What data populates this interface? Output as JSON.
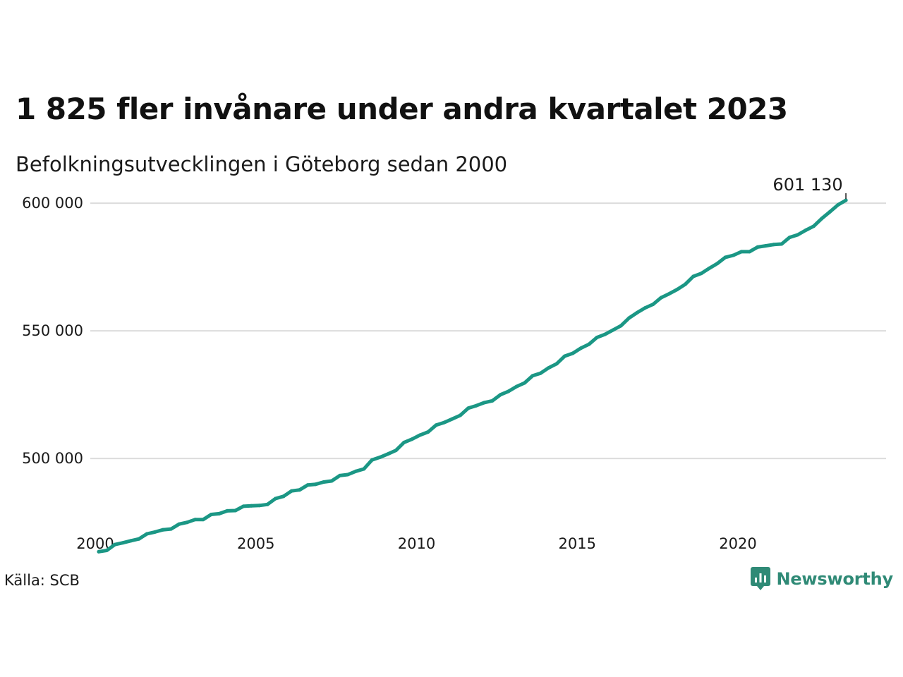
{
  "title": "1 825 fler invånare under andra kvartalet 2023",
  "subtitle": "Befolkningsutvecklingen i Göteborg sedan 2000",
  "source": "Källa: SCB",
  "brand": {
    "name": "Newsworthy",
    "icon": "newsworthy-logo-icon",
    "color": "#2f8a76"
  },
  "colors": {
    "line": "#1b9785",
    "grid": "#dcdcdc",
    "text": "#1a1a1a"
  },
  "chart_data": {
    "type": "line",
    "title": "1 825 fler invånare under andra kvartalet 2023",
    "subtitle": "Befolkningsutvecklingen i Göteborg sedan 2000",
    "xlabel": "",
    "ylabel": "",
    "xlim": [
      2000,
      2024.5
    ],
    "ylim": [
      460000,
      605000
    ],
    "x_ticks": [
      2000,
      2005,
      2010,
      2015,
      2020
    ],
    "x_tick_labels": [
      "2000",
      "2005",
      "2010",
      "2015",
      "2020"
    ],
    "y_ticks": [
      500000,
      550000,
      600000
    ],
    "y_tick_labels": [
      "500 000",
      "550 000",
      "600 000"
    ],
    "grid": "horizontal",
    "legend": "none",
    "end_label": "601 130",
    "series": [
      {
        "x": [
          2000.0,
          2000.25,
          2000.5,
          2000.75,
          2001.0,
          2001.25,
          2001.5,
          2001.75,
          2002.0,
          2002.25,
          2002.5,
          2002.75,
          2003.0,
          2003.25,
          2003.5,
          2003.75,
          2004.0,
          2004.25,
          2004.5,
          2004.75,
          2005.0,
          2005.25,
          2005.5,
          2005.75,
          2006.0,
          2006.25,
          2006.5,
          2006.75,
          2007.0,
          2007.25,
          2007.5,
          2007.75,
          2008.0,
          2008.25,
          2008.5,
          2008.75,
          2009.0,
          2009.25,
          2009.5,
          2009.75,
          2010.0,
          2010.25,
          2010.5,
          2010.75,
          2011.0,
          2011.25,
          2011.5,
          2011.75,
          2012.0,
          2012.25,
          2012.5,
          2012.75,
          2013.0,
          2013.25,
          2013.5,
          2013.75,
          2014.0,
          2014.25,
          2014.5,
          2014.75,
          2015.0,
          2015.25,
          2015.5,
          2015.75,
          2016.0,
          2016.25,
          2016.5,
          2016.75,
          2017.0,
          2017.25,
          2017.5,
          2017.75,
          2018.0,
          2018.25,
          2018.5,
          2018.75,
          2019.0,
          2019.25,
          2019.5,
          2019.75,
          2020.0,
          2020.25,
          2020.5,
          2020.75,
          2021.0,
          2021.25,
          2021.5,
          2021.75,
          2022.0,
          2022.25,
          2022.5,
          2022.75,
          2023.0,
          2023.25
        ],
        "values": [
          463500,
          464000,
          466300,
          467000,
          467800,
          468500,
          470500,
          471200,
          472100,
          472400,
          474300,
          475000,
          476100,
          476100,
          478100,
          478400,
          479500,
          479600,
          481300,
          481500,
          481600,
          482000,
          484300,
          485200,
          487300,
          487700,
          489600,
          489900,
          490800,
          491200,
          493300,
          493700,
          495000,
          495900,
          499400,
          500500,
          501800,
          503200,
          506300,
          507600,
          509200,
          510400,
          513100,
          514100,
          515500,
          516900,
          519700,
          520700,
          521900,
          522600,
          525000,
          526300,
          528200,
          529600,
          532400,
          533400,
          535500,
          537100,
          540100,
          541200,
          543200,
          544700,
          547400,
          548600,
          550300,
          552000,
          555000,
          557100,
          559000,
          560400,
          563000,
          564500,
          566200,
          568200,
          571300,
          572500,
          574500,
          576400,
          578800,
          579600,
          581000,
          581000,
          582800,
          583300,
          583800,
          584000,
          586600,
          587600,
          589400,
          591000,
          594000,
          596600,
          599300,
          601130
        ]
      }
    ]
  }
}
